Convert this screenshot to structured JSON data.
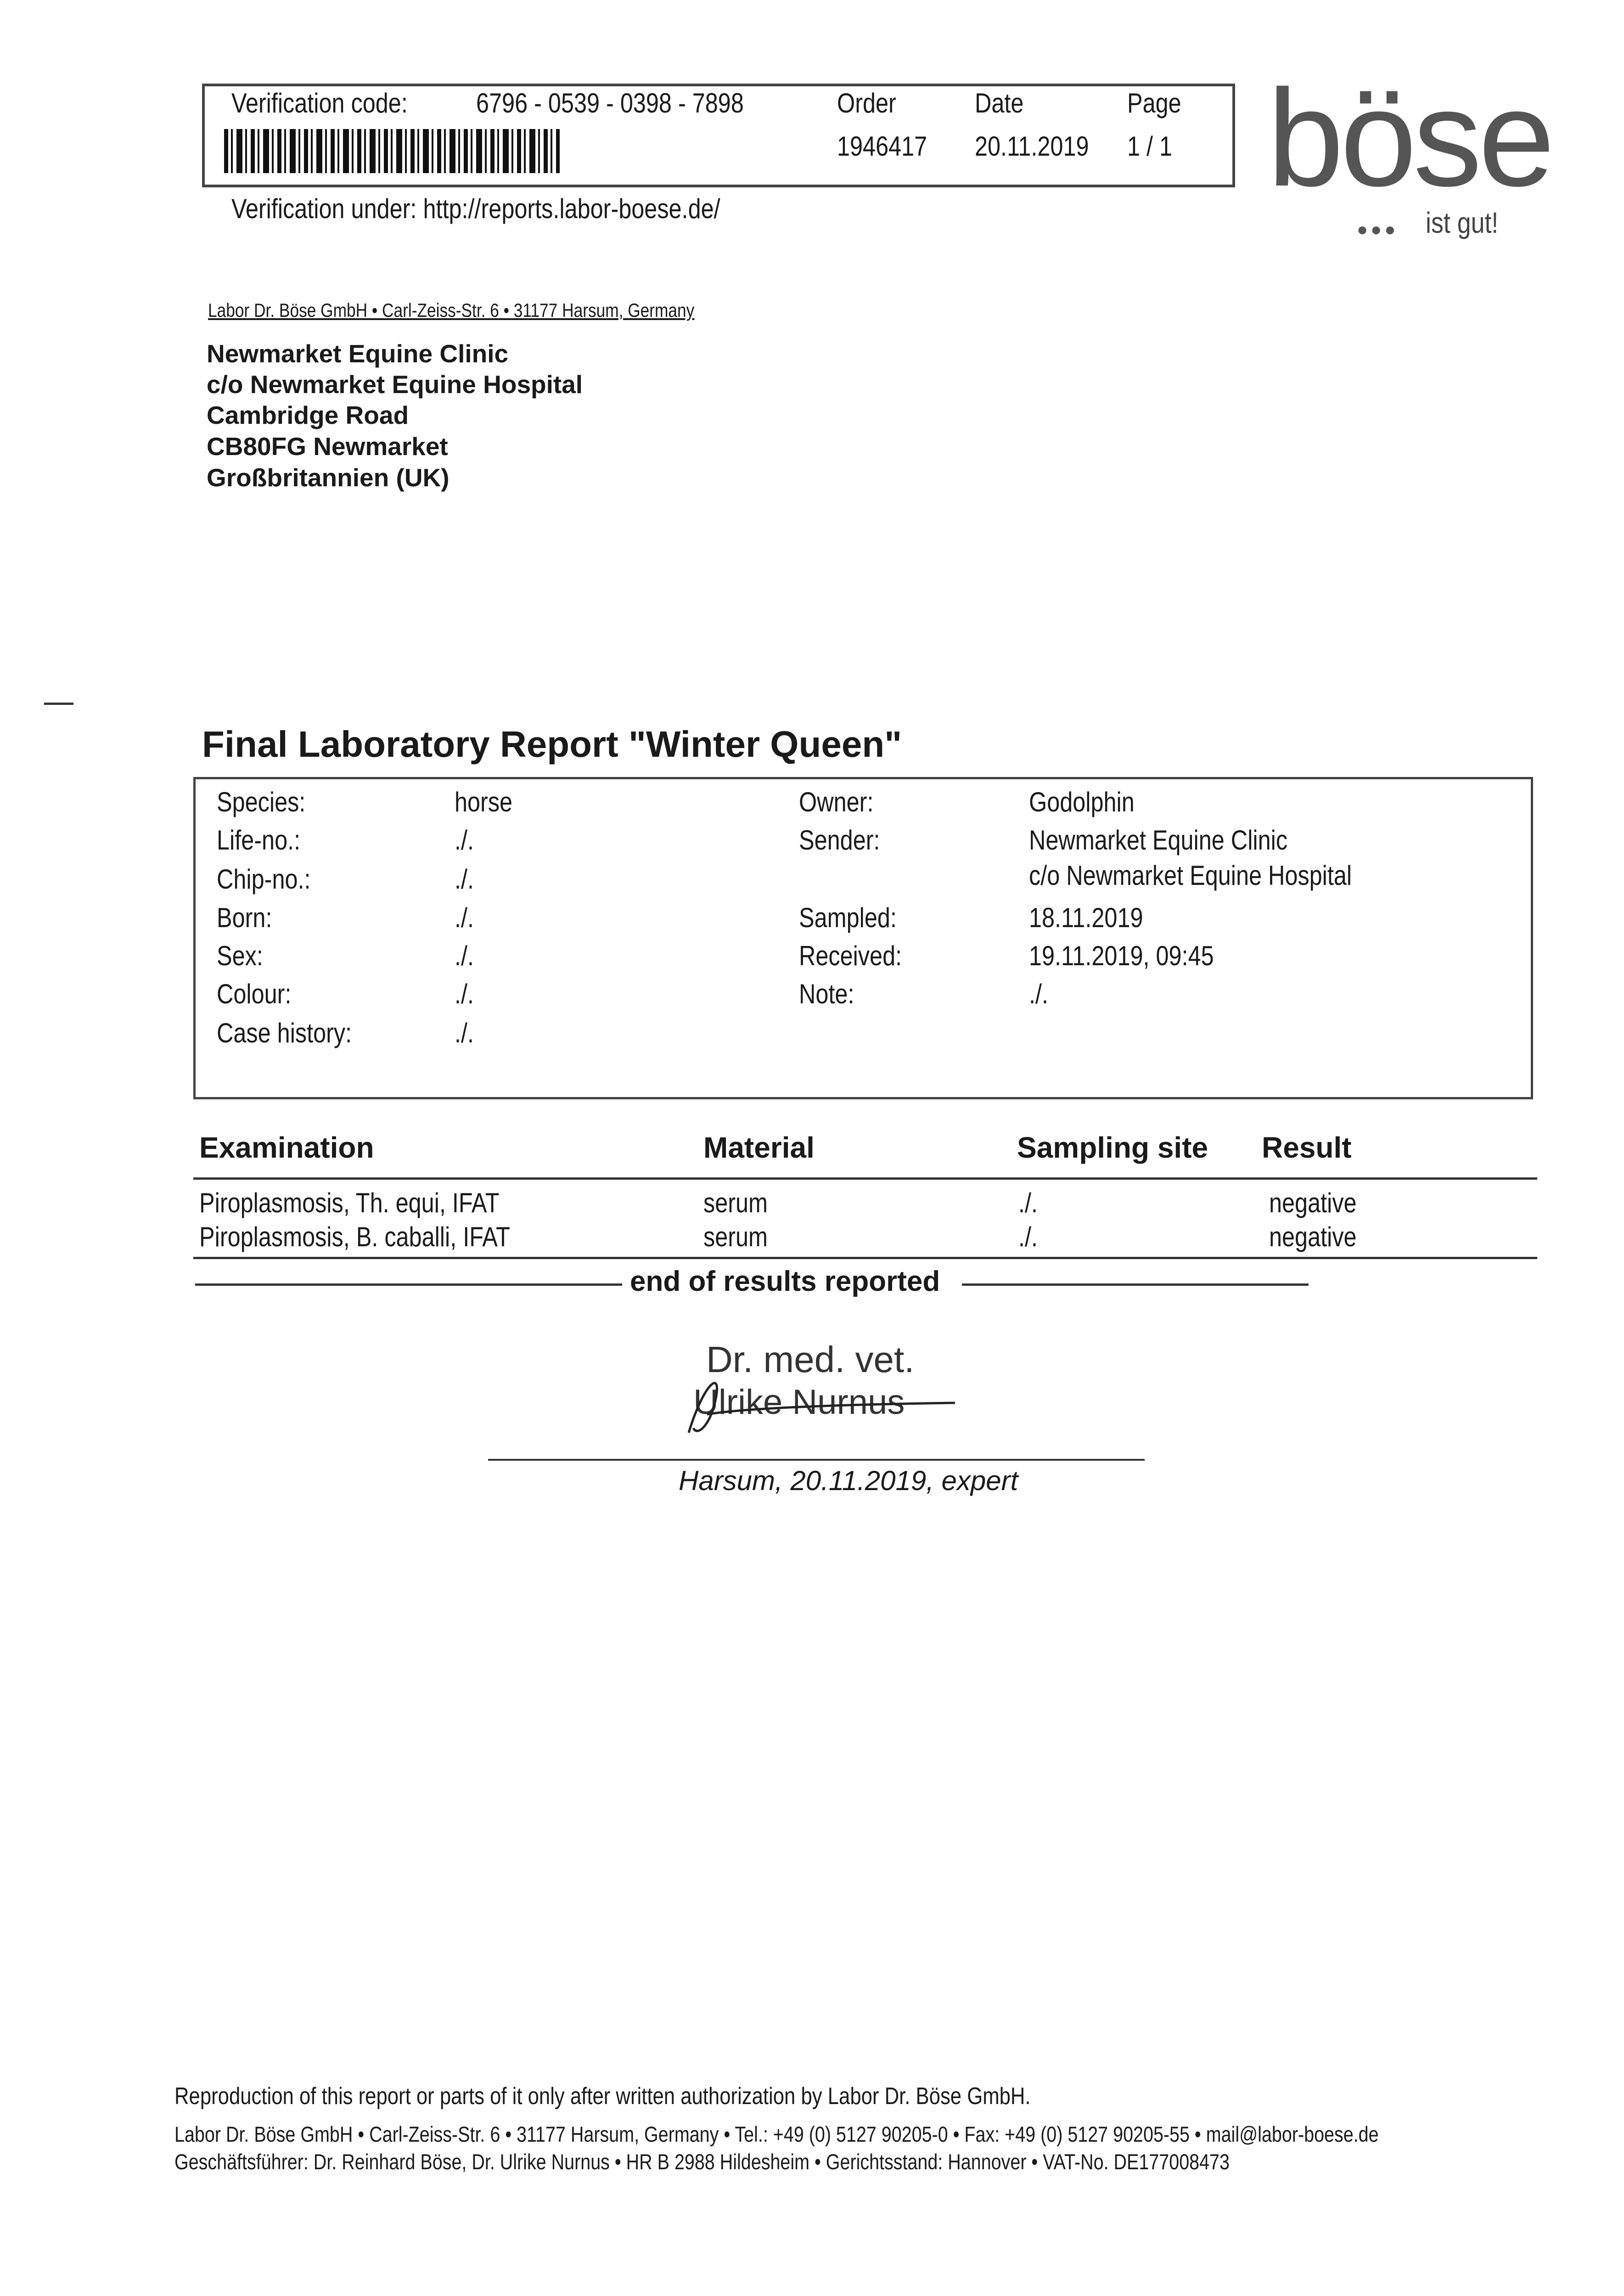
{
  "header": {
    "verification_label": "Verification code:",
    "verification_code": "6796 - 0539 - 0398 - 7898",
    "order_label": "Order",
    "order_value": "1946417",
    "date_label": "Date",
    "date_value": "20.11.2019",
    "page_label": "Page",
    "page_value": "1 / 1",
    "verification_url_text": "Verification under: http://reports.labor-boese.de/"
  },
  "logo": {
    "wordmark": "böse",
    "tagline": "ist gut!",
    "brand_color": "#555555"
  },
  "sender_line": "Labor Dr. Böse GmbH • Carl-Zeiss-Str. 6 • 31177 Harsum, Germany",
  "recipient": [
    "Newmarket Equine Clinic",
    "c/o Newmarket Equine Hospital",
    "Cambridge Road",
    "CB80FG Newmarket",
    "Großbritannien (UK)"
  ],
  "title": "Final Laboratory Report \"Winter Queen\"",
  "info_left": [
    {
      "label": "Species:",
      "value": "horse"
    },
    {
      "label": "Life-no.:",
      "value": "./."
    },
    {
      "label": "Chip-no.:",
      "value": "./."
    },
    {
      "label": "Born:",
      "value": "./."
    },
    {
      "label": "Sex:",
      "value": "./."
    },
    {
      "label": "Colour:",
      "value": "./."
    },
    {
      "label": "Case history:",
      "value": "./."
    }
  ],
  "info_right": {
    "owner_label": "Owner:",
    "owner": "Godolphin",
    "sender_label": "Sender:",
    "sender_1": "Newmarket Equine Clinic",
    "sender_2": "c/o Newmarket Equine Hospital",
    "sampled_label": "Sampled:",
    "sampled": "18.11.2019",
    "received_label": "Received:",
    "received": "19.11.2019, 09:45",
    "note_label": "Note:",
    "note": "./."
  },
  "results": {
    "headers": [
      "Examination",
      "Material",
      "Sampling site",
      "Result"
    ],
    "rows": [
      [
        "Piroplasmosis, Th. equi, IFAT",
        "serum",
        "./.",
        "negative"
      ],
      [
        "Piroplasmosis, B. caballi, IFAT",
        "serum",
        "./.",
        "negative"
      ]
    ],
    "end_text": "end of results reported"
  },
  "signature": {
    "stamp_line1": "Dr. med. vet.",
    "stamp_line2": "Ulrike Nurnus",
    "caption": "Harsum, 20.11.2019, expert"
  },
  "footer": {
    "notice": "Reproduction of this report or parts of it only after written authorization by Labor Dr. Böse GmbH.",
    "line1": "Labor Dr. Böse GmbH • Carl-Zeiss-Str. 6 • 31177 Harsum, Germany • Tel.: +49 (0) 5127 90205-0 • Fax: +49 (0) 5127 90205-55 • mail@labor-boese.de",
    "line2": "Geschäftsführer: Dr. Reinhard Böse, Dr. Ulrike Nurnus • HR B 2988 Hildesheim • Gerichtsstand: Hannover • VAT-No. DE177008473"
  }
}
